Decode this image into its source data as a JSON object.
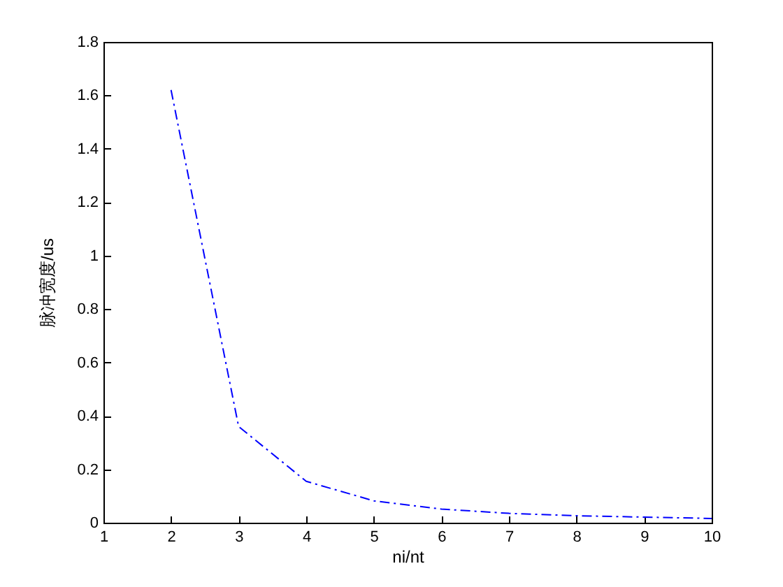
{
  "chart_data": {
    "type": "line",
    "xlabel": "ni/nt",
    "ylabel": "脉冲宽度/us",
    "x": [
      2,
      3,
      4,
      5,
      6,
      7,
      8,
      9,
      10
    ],
    "series": [
      {
        "color": "#0000ff",
        "values": [
          1.62,
          0.36,
          0.155,
          0.082,
          0.051,
          0.035,
          0.026,
          0.021,
          0.016
        ]
      }
    ],
    "xlim": [
      1,
      10
    ],
    "xticks": [
      1,
      2,
      3,
      4,
      5,
      6,
      7,
      8,
      9,
      10
    ],
    "ylim": [
      0,
      1.8
    ],
    "yticks": [
      0,
      0.2,
      0.4,
      0.6,
      0.8,
      1,
      1.2,
      1.4,
      1.6,
      1.8
    ],
    "line_style": "dashed",
    "marker": "none",
    "grid": false
  }
}
